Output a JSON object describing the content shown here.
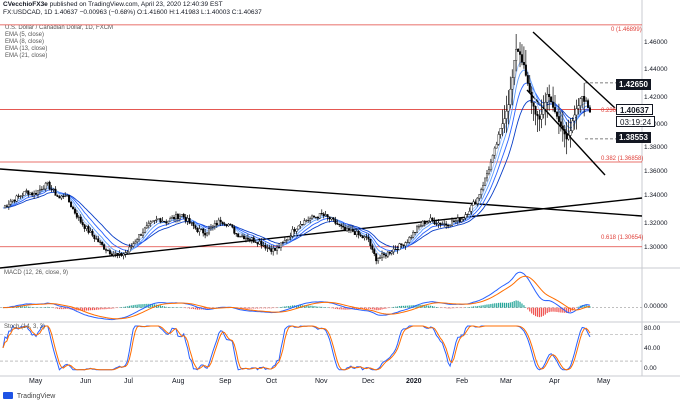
{
  "header": {
    "author": "CVecchioFX3e",
    "published": "published on TradingView.com, April 23, 2020 12:40:39 EST",
    "symbol_line": "FX:USDCAD, 1D  1.40637  −0.00963 (−0.68%)  O:1.41600  H:1.41983  L:1.40003  C:1.40637",
    "title": "U.S. Dollar / Canadian Dollar, 1D, FXCM",
    "indicators": [
      "EMA (5, close)",
      "EMA (8, close)",
      "EMA (13, close)",
      "EMA (21, close)"
    ]
  },
  "panes": {
    "macd_label": "MACD (12, 26, close, 9)",
    "stoch_label": "Stoch (14, 3, 3)"
  },
  "price_tags": {
    "level_high": "1.42650",
    "current": "1.40637",
    "countdown": "03:19:24",
    "level_low": "1.38553"
  },
  "footer": {
    "brand": "TradingView"
  },
  "chart_data": {
    "type": "candlestick",
    "title": "U.S. Dollar / Canadian Dollar, 1D, FXCM",
    "y_ticks": [
      "1.46000",
      "1.44000",
      "1.42000",
      "1.40000",
      "1.38000",
      "1.36000",
      "1.34000",
      "1.32000",
      "1.30000"
    ],
    "ylim": [
      1.291,
      1.474
    ],
    "x_ticks": [
      "May",
      "Jun",
      "Jul",
      "Aug",
      "Sep",
      "Oct",
      "Nov",
      "Dec",
      "2020",
      "Feb",
      "Mar",
      "Apr",
      "May"
    ],
    "fib_levels": [
      {
        "label": "0 (1.46899)",
        "value": 1.46899
      },
      {
        "label": "0.236 (1.40696)",
        "value": 1.40696
      },
      {
        "label": "0.382 (1.36858)",
        "value": 1.36858
      },
      {
        "label": "0.618 (1.30654)",
        "value": 1.30654
      }
    ],
    "horizontal_levels": [
      1.4265,
      1.38553
    ],
    "last_close": 1.40637,
    "close_path": [
      [
        0,
        1.335
      ],
      [
        4,
        1.34
      ],
      [
        8,
        1.343
      ],
      [
        12,
        1.347
      ],
      [
        16,
        1.345
      ],
      [
        20,
        1.35
      ],
      [
        23,
        1.352
      ],
      [
        26,
        1.347
      ],
      [
        29,
        1.342
      ],
      [
        32,
        1.345
      ],
      [
        36,
        1.334
      ],
      [
        40,
        1.325
      ],
      [
        44,
        1.318
      ],
      [
        48,
        1.312
      ],
      [
        52,
        1.306
      ],
      [
        56,
        1.302
      ],
      [
        60,
        1.3
      ],
      [
        64,
        1.303
      ],
      [
        68,
        1.311
      ],
      [
        72,
        1.318
      ],
      [
        76,
        1.323
      ],
      [
        80,
        1.327
      ],
      [
        84,
        1.325
      ],
      [
        88,
        1.328
      ],
      [
        92,
        1.33
      ],
      [
        96,
        1.324
      ],
      [
        100,
        1.319
      ],
      [
        104,
        1.317
      ],
      [
        108,
        1.321
      ],
      [
        112,
        1.326
      ],
      [
        116,
        1.323
      ],
      [
        120,
        1.316
      ],
      [
        124,
        1.314
      ],
      [
        128,
        1.312
      ],
      [
        132,
        1.31
      ],
      [
        136,
        1.306
      ],
      [
        140,
        1.304
      ],
      [
        144,
        1.309
      ],
      [
        148,
        1.316
      ],
      [
        152,
        1.323
      ],
      [
        156,
        1.326
      ],
      [
        160,
        1.328
      ],
      [
        164,
        1.33
      ],
      [
        168,
        1.327
      ],
      [
        172,
        1.323
      ],
      [
        176,
        1.318
      ],
      [
        180,
        1.318
      ],
      [
        184,
        1.314
      ],
      [
        188,
        1.312
      ],
      [
        190,
        1.303
      ],
      [
        192,
        1.298
      ],
      [
        196,
        1.3
      ],
      [
        200,
        1.304
      ],
      [
        204,
        1.307
      ],
      [
        208,
        1.311
      ],
      [
        212,
        1.318
      ],
      [
        216,
        1.324
      ],
      [
        220,
        1.326
      ],
      [
        224,
        1.324
      ],
      [
        228,
        1.323
      ],
      [
        232,
        1.325
      ],
      [
        236,
        1.327
      ],
      [
        240,
        1.334
      ],
      [
        244,
        1.342
      ],
      [
        248,
        1.356
      ],
      [
        252,
        1.372
      ],
      [
        256,
        1.392
      ],
      [
        260,
        1.412
      ],
      [
        262,
        1.43
      ],
      [
        264,
        1.452
      ],
      [
        266,
        1.448
      ],
      [
        268,
        1.438
      ],
      [
        270,
        1.425
      ],
      [
        272,
        1.413
      ],
      [
        274,
        1.405
      ],
      [
        276,
        1.398
      ],
      [
        278,
        1.408
      ],
      [
        280,
        1.418
      ],
      [
        282,
        1.414
      ],
      [
        284,
        1.404
      ],
      [
        286,
        1.398
      ],
      [
        288,
        1.392
      ],
      [
        290,
        1.387
      ],
      [
        292,
        1.392
      ],
      [
        294,
        1.402
      ],
      [
        296,
        1.41
      ],
      [
        298,
        1.417
      ],
      [
        300,
        1.412
      ],
      [
        302,
        1.406
      ]
    ],
    "macd": {
      "ylim": [
        -0.008,
        0.026
      ],
      "y_ticks": [
        "0.00000"
      ],
      "histogram_sign": "mostly negative until Feb, large positive bars in Mar, negative in Apr"
    },
    "stochastic": {
      "ylim": [
        -5,
        100
      ],
      "y_ticks": [
        "80.00",
        "40.00",
        "0.00"
      ],
      "bands": [
        80,
        20
      ]
    }
  }
}
